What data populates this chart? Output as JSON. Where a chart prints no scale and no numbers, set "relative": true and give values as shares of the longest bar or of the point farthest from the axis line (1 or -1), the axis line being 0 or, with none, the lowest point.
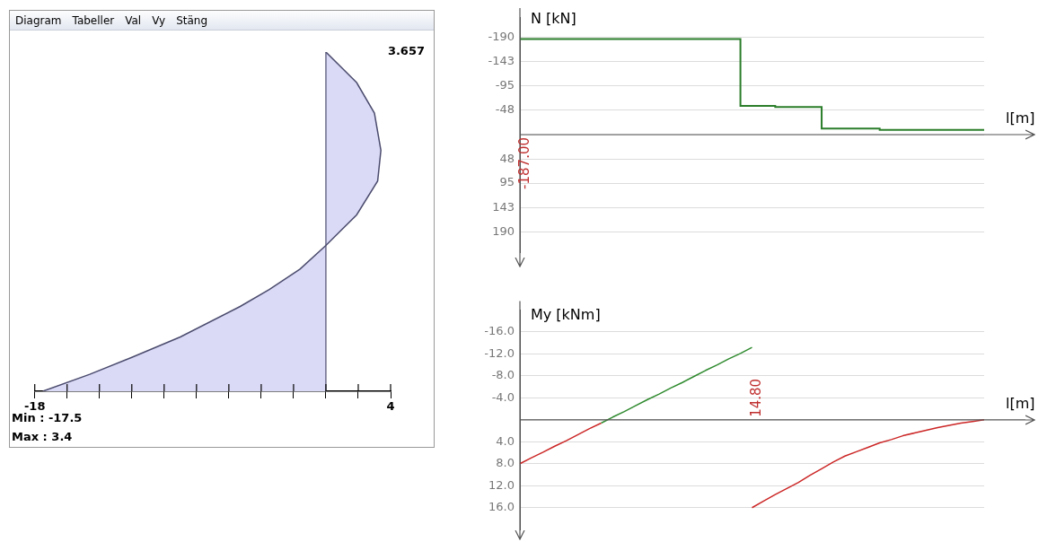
{
  "chart_data": [
    {
      "type": "area",
      "relative": true,
      "color": "#dadaf6",
      "x": [
        -17.5,
        -14.6,
        -12.0,
        -9.0,
        -5.3,
        -3.5,
        -1.6,
        0,
        1.9,
        3.2,
        3.4,
        3.0,
        1.9,
        0
      ],
      "values": [
        0,
        0.05,
        0.1,
        0.16,
        0.25,
        0.3,
        0.36,
        0.43,
        0.52,
        0.62,
        0.71,
        0.82,
        0.91,
        1
      ],
      "xlim": [
        -18,
        4
      ],
      "xticks": [
        -18,
        {
          "value": -16,
          "label": null
        },
        {
          "value": -14,
          "label": null
        },
        {
          "value": -12,
          "label": null
        },
        {
          "value": -10,
          "label": null
        },
        {
          "value": -8,
          "label": null
        },
        {
          "value": -6,
          "label": null
        },
        {
          "value": -4,
          "label": null
        },
        {
          "value": -2,
          "label": null
        },
        {
          "value": 0,
          "label": null
        },
        {
          "value": 2,
          "label": null
        },
        4
      ],
      "ref_lines": [
        {
          "axis": "x",
          "value": 0,
          "color": "#4b4b6e"
        }
      ],
      "annotations": [
        "Diagram",
        "Tabeller",
        "Val",
        "Vy",
        "Stäng",
        "Min : -17.5",
        "Max : 3.4",
        "3.657"
      ],
      "grid": false
    },
    {
      "type": "step",
      "ylabel": "N [kN]",
      "xlabel": "l[m]",
      "categories": [
        null,
        null,
        null,
        null,
        null,
        null,
        null,
        null,
        null,
        null,
        null,
        null,
        null,
        null,
        null,
        null,
        null,
        null,
        null,
        null,
        null,
        null,
        null,
        null,
        null,
        null,
        null,
        null,
        null,
        null,
        null,
        null,
        null,
        null,
        null,
        null,
        null,
        null,
        null,
        null,
        null
      ],
      "series": [
        {
          "color": "#2a7d2a",
          "values": [
            -187,
            -187,
            -187,
            -187,
            -187,
            -187,
            -187,
            -187,
            -187,
            -187,
            -187,
            -187,
            -187,
            -187,
            -187,
            -187,
            -187,
            -187,
            -187,
            -187,
            -56,
            -56,
            -56,
            -54,
            -54,
            -54,
            -54,
            -12,
            -12,
            -12,
            -12,
            -12,
            -9,
            -9,
            -9,
            -9,
            -9,
            -9,
            -9,
            -9,
            -9
          ]
        }
      ],
      "annotations": [
        "-187.00"
      ],
      "ylim": [
        230,
        -230
      ],
      "yticks": [
        -190,
        -143,
        -95,
        -48,
        {
          "value": 0,
          "label": null
        },
        48,
        95,
        143,
        190
      ],
      "grid": "y",
      "tick_labels": "y"
    },
    {
      "type": "line",
      "ylabel": "My [kNm]",
      "xlabel": "l[m]",
      "categories": [
        null,
        null,
        null,
        null,
        null,
        null,
        null,
        null,
        null,
        null,
        null,
        null,
        null,
        null,
        null,
        null,
        null,
        null,
        null,
        null,
        null,
        null,
        null,
        null,
        null,
        null,
        null,
        null,
        null,
        null,
        null,
        null,
        null,
        null,
        null,
        null,
        null,
        null,
        null,
        null,
        null
      ],
      "series": [
        {
          "color": "#cc2626",
          "values": [
            8.0,
            6.9,
            5.9,
            4.8,
            3.8,
            2.7,
            1.6,
            0.6,
            null,
            null,
            null,
            null,
            null,
            null,
            null,
            null,
            null,
            null,
            null,
            null,
            null,
            null,
            null,
            null,
            null,
            null,
            null,
            null,
            null,
            null,
            null,
            null,
            null,
            null,
            null,
            null,
            null,
            null,
            null,
            null,
            null
          ]
        },
        {
          "color": "#2f8a2f",
          "values": [
            null,
            null,
            null,
            null,
            null,
            null,
            null,
            0.6,
            -0.5,
            -1.5,
            -2.6,
            -3.7,
            -4.7,
            -5.8,
            -6.8,
            -7.9,
            -9.0,
            -10.0,
            -11.1,
            -12.1,
            -13.2,
            null,
            null,
            null,
            null,
            null,
            null,
            null,
            null,
            null,
            null,
            null,
            null,
            null,
            null,
            null,
            null,
            null,
            null,
            null,
            null
          ]
        },
        {
          "color": "#cc2626",
          "values": [
            null,
            null,
            null,
            null,
            null,
            null,
            null,
            null,
            null,
            null,
            null,
            null,
            null,
            null,
            null,
            null,
            null,
            null,
            null,
            null,
            16.0,
            14.8,
            13.6,
            12.5,
            11.4,
            10.1,
            8.9,
            7.7,
            6.6,
            5.8,
            5.0,
            4.2,
            3.6,
            2.9,
            2.4,
            1.9,
            1.4,
            1.0,
            0.6,
            0.3,
            0
          ]
        }
      ],
      "annotations": [
        "14.80"
      ],
      "ylim": [
        20,
        -20
      ],
      "yticks": [
        {
          "value": -16,
          "label": "-16.0"
        },
        {
          "value": -12,
          "label": "-12.0"
        },
        {
          "value": -8,
          "label": "-8.0"
        },
        {
          "value": -4,
          "label": "-4.0"
        },
        {
          "value": 0,
          "label": null
        },
        {
          "value": 4,
          "label": "4.0"
        },
        {
          "value": 8,
          "label": "8.0"
        },
        {
          "value": 12,
          "label": "12.0"
        },
        {
          "value": 16,
          "label": "16.0"
        }
      ],
      "grid": "y",
      "tick_labels": "y"
    }
  ]
}
